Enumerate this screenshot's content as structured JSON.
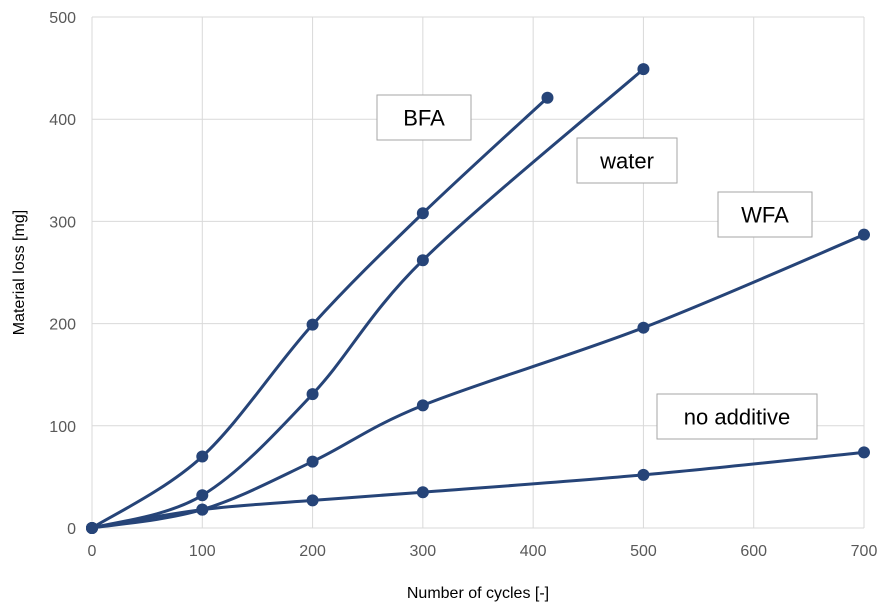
{
  "chart_data": {
    "type": "line",
    "title": "",
    "xlabel": "Number of cycles [-]",
    "ylabel": "Material loss [mg]",
    "xlim": [
      0,
      700
    ],
    "ylim": [
      0,
      500
    ],
    "xticks": [
      0,
      100,
      200,
      300,
      400,
      500,
      600,
      700
    ],
    "yticks": [
      0,
      100,
      200,
      300,
      400,
      500
    ],
    "xtick_labels": [
      "0",
      "100",
      "200",
      "300",
      "400",
      "500",
      "600",
      "700"
    ],
    "ytick_labels": [
      "0",
      "100",
      "200",
      "300",
      "400",
      "500"
    ],
    "grid": true,
    "legend": "none",
    "line_color": "#264478",
    "series": [
      {
        "name": "BFA",
        "x": [
          0,
          100,
          200,
          300,
          413
        ],
        "y": [
          0,
          70,
          199,
          308,
          421
        ]
      },
      {
        "name": "water",
        "x": [
          0,
          100,
          200,
          300,
          500
        ],
        "y": [
          0,
          32,
          131,
          262,
          449
        ]
      },
      {
        "name": "WFA",
        "x": [
          0,
          100,
          200,
          300,
          500,
          700
        ],
        "y": [
          0,
          18,
          65,
          120,
          196,
          287
        ]
      },
      {
        "name": "no additive",
        "x": [
          0,
          100,
          200,
          300,
          500,
          700
        ],
        "y": [
          0,
          18,
          27,
          35,
          52,
          74
        ]
      }
    ]
  }
}
